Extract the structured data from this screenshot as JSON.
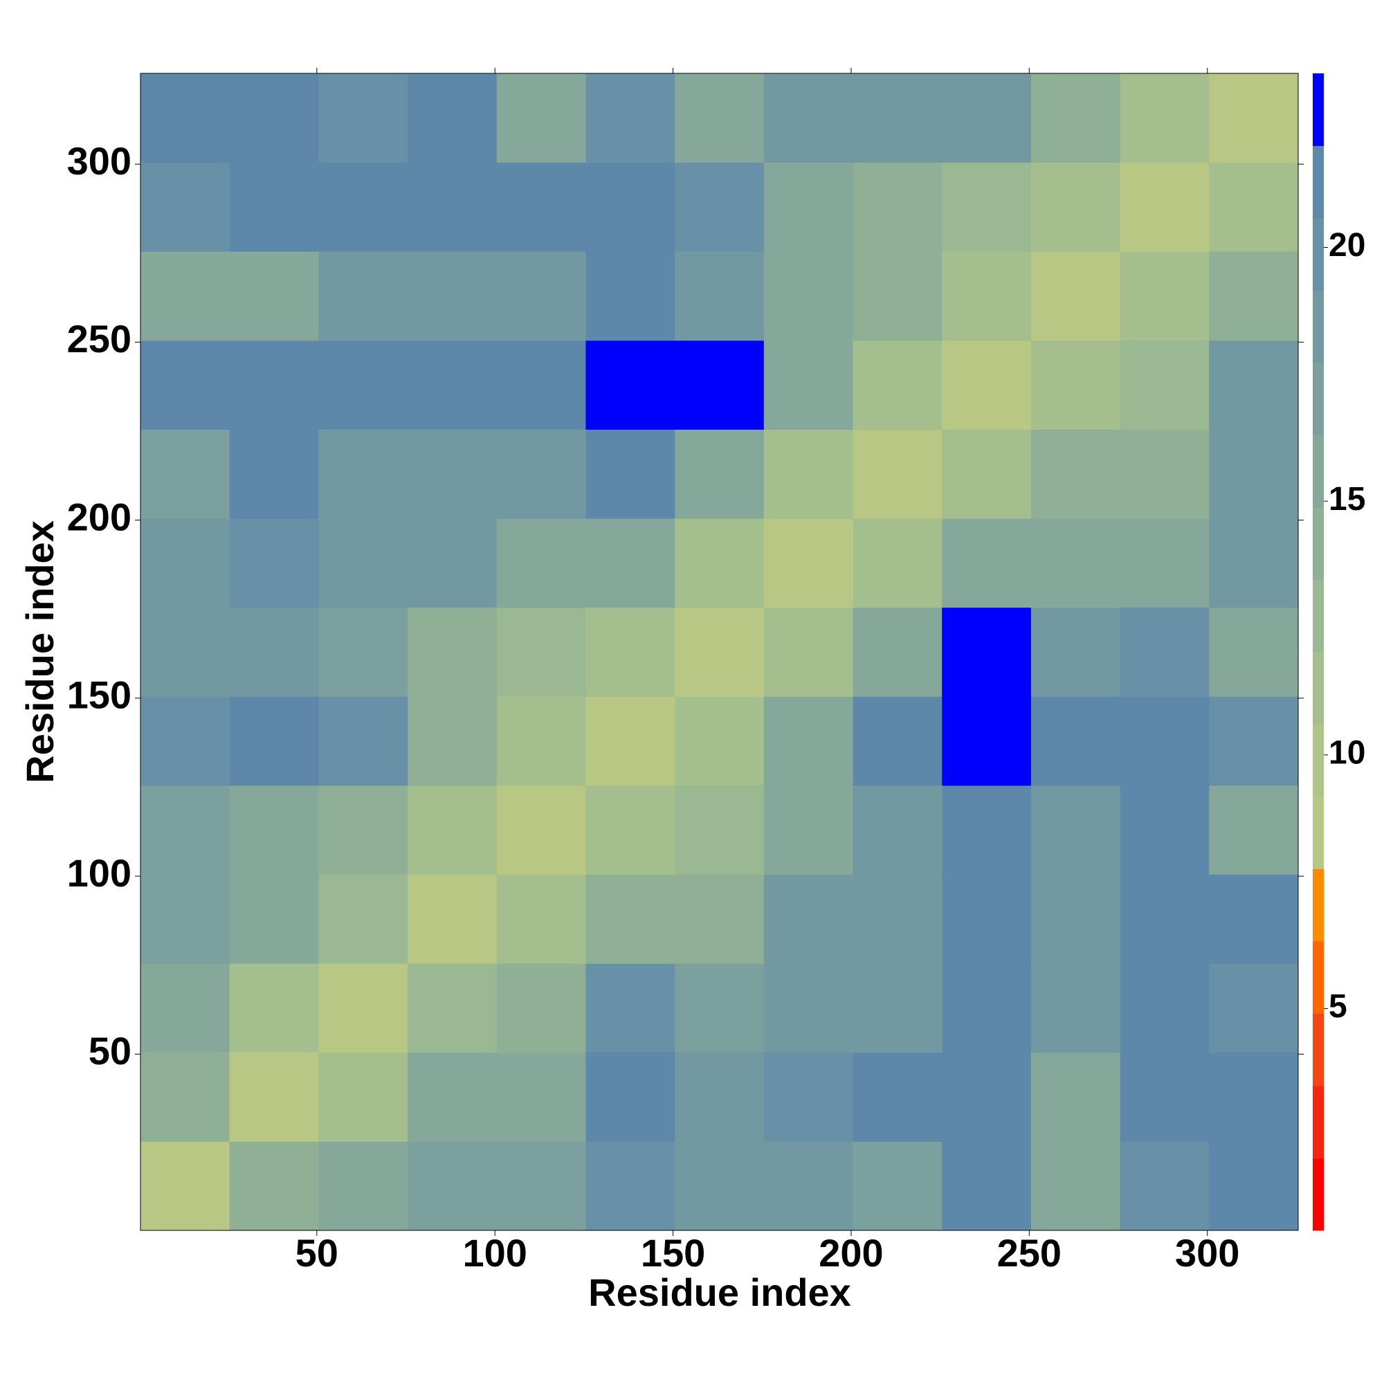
{
  "chart_data": {
    "type": "heatmap",
    "x_label": "Residue index",
    "y_label": "Residue index",
    "x_bins": [
      0.5,
      25.5,
      50.5,
      75.5,
      100.5,
      125.5,
      150.5,
      175.5,
      200.5,
      225.5,
      250.5,
      275.5,
      300.5,
      325.5
    ],
    "y_bins": [
      0.5,
      25.5,
      50.5,
      75.5,
      100.5,
      125.5,
      150.5,
      175.5,
      200.5,
      225.5,
      250.5,
      275.5,
      300.5,
      325.5
    ],
    "z": [
      [
        8,
        14,
        15,
        17,
        17,
        20,
        18,
        18,
        17,
        21,
        15,
        20,
        22
      ],
      [
        14,
        8,
        12,
        15,
        16,
        21,
        18,
        20,
        21,
        22,
        15,
        21,
        21
      ],
      [
        15,
        12,
        8,
        13,
        14,
        20,
        17,
        18,
        18,
        22,
        19,
        22,
        20
      ],
      [
        17,
        15,
        13,
        8,
        12,
        14,
        14,
        18,
        18,
        22,
        19,
        22,
        21
      ],
      [
        17,
        16,
        14,
        12,
        8,
        12,
        13,
        16,
        19,
        22,
        19,
        22,
        15
      ],
      [
        20,
        21,
        20,
        14,
        12,
        8,
        12,
        15,
        21,
        23,
        22,
        22,
        20
      ],
      [
        18,
        18,
        17,
        14,
        13,
        12,
        8,
        12,
        15,
        23,
        19,
        20,
        16
      ],
      [
        18,
        20,
        18,
        18,
        16,
        15,
        12,
        8,
        11,
        16,
        15,
        15,
        18
      ],
      [
        17,
        21,
        18,
        18,
        19,
        21,
        15,
        11,
        8,
        12,
        14,
        14,
        19
      ],
      [
        21,
        22,
        22,
        22,
        22,
        23,
        23,
        16,
        12,
        8,
        11,
        13,
        18
      ],
      [
        15,
        15,
        19,
        19,
        19,
        22,
        19,
        15,
        14,
        11,
        8,
        11,
        14
      ],
      [
        20,
        21,
        22,
        22,
        22,
        22,
        20,
        15,
        14,
        13,
        11,
        8,
        12
      ],
      [
        22,
        21,
        20,
        21,
        15,
        20,
        16,
        18,
        19,
        18,
        14,
        12,
        8
      ]
    ],
    "xlim": [
      0.5,
      325.5
    ],
    "ylim": [
      0.5,
      325.5
    ],
    "xticks": [
      50,
      100,
      150,
      200,
      250,
      300
    ],
    "yticks": [
      50,
      100,
      150,
      200,
      250,
      300
    ],
    "clim": [
      0.63,
      23.43
    ],
    "cticks": [
      5,
      10,
      15,
      20
    ],
    "colors": [
      "#ff0000",
      "#f52510",
      "#f54510",
      "#ff6600",
      "#ff8c00",
      "#b8c884",
      "#aec48a",
      "#a4be8e",
      "#9ab892",
      "#90b096",
      "#86a89a",
      "#7ca09e",
      "#7298a2",
      "#6890a6",
      "#5e88aa",
      "#0000ff"
    ]
  }
}
